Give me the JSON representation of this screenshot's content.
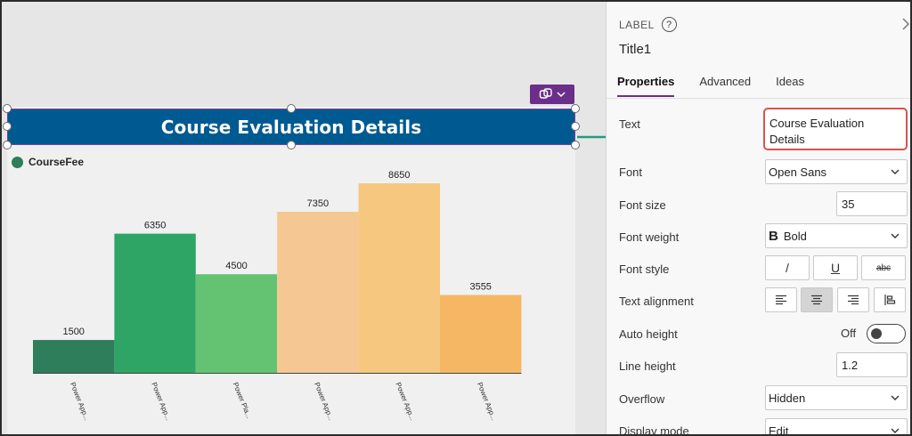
{
  "canvas": {
    "title_text": "Course Evaluation Details",
    "legend_label": "CourseFee",
    "copilot_icon": "copilot-icon"
  },
  "chart_data": {
    "type": "bar",
    "categories": [
      "Power App...",
      "Power App...",
      "Power Pla...",
      "Power App...",
      "Power App...",
      "Power App..."
    ],
    "series": [
      {
        "name": "CourseFee",
        "values": [
          1500,
          6350,
          4500,
          7350,
          8650,
          3555
        ]
      }
    ],
    "bar_colors": [
      "#2e7d5b",
      "#2ea565",
      "#63c372",
      "#f5c893",
      "#f5c77f",
      "#f5b763"
    ],
    "legend_color": "#2e7d5b",
    "ylim": [
      0,
      8650
    ],
    "grid": false,
    "legend": "top-left"
  },
  "panel": {
    "control_type": "LABEL",
    "control_name": "Title1",
    "tabs": [
      {
        "label": "Properties",
        "active": true
      },
      {
        "label": "Advanced",
        "active": false
      },
      {
        "label": "Ideas",
        "active": false
      }
    ],
    "props": {
      "text_label": "Text",
      "text_value": "Course Evaluation Details",
      "font_label": "Font",
      "font_value": "Open Sans",
      "font_size_label": "Font size",
      "font_size_value": "35",
      "font_weight_label": "Font weight",
      "font_weight_value": "Bold",
      "font_weight_glyph": "B",
      "font_style_label": "Font style",
      "font_style_italic": "/",
      "font_style_underline": "U",
      "font_style_strike": "abc",
      "text_alignment_label": "Text alignment",
      "auto_height_label": "Auto height",
      "auto_height_value": "Off",
      "line_height_label": "Line height",
      "line_height_value": "1.2",
      "overflow_label": "Overflow",
      "overflow_value": "Hidden",
      "display_mode_label": "Display mode",
      "display_mode_value": "Edit"
    }
  },
  "colors": {
    "title_bg": "#005a92",
    "selection": "#7a3e9d",
    "copilot_bg": "#6b2f8a",
    "arrow": "#1f9e80",
    "highlight": "#d9534f"
  }
}
